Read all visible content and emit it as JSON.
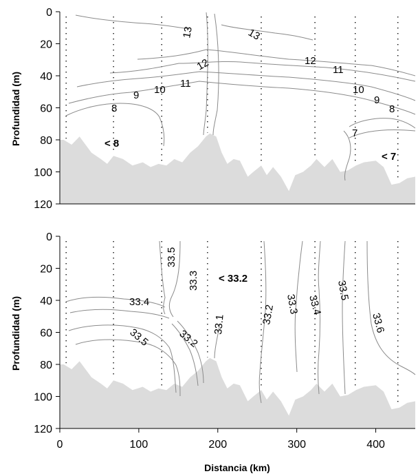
{
  "colors": {
    "bathymetry": "#dcdcdc",
    "contour": "#8a8a8a",
    "axis": "#000000"
  },
  "chart_data": [
    {
      "type": "contour",
      "ylabel": "Profundidad (m)",
      "xlim": [
        0,
        450
      ],
      "ylim": [
        0,
        120
      ],
      "y_inverted": true,
      "yticks": [
        "0",
        "20",
        "40",
        "60",
        "80",
        "100",
        "120"
      ],
      "stations_km": [
        8,
        68,
        129,
        187,
        255,
        323,
        374,
        428
      ],
      "bottom_depth": [
        [
          0,
          80
        ],
        [
          5,
          80
        ],
        [
          15,
          83
        ],
        [
          25,
          78
        ],
        [
          40,
          88
        ],
        [
          52,
          92
        ],
        [
          60,
          95
        ],
        [
          68,
          90
        ],
        [
          80,
          92
        ],
        [
          92,
          96
        ],
        [
          105,
          94
        ],
        [
          115,
          97
        ],
        [
          125,
          95
        ],
        [
          135,
          96
        ],
        [
          145,
          92
        ],
        [
          155,
          94
        ],
        [
          165,
          88
        ],
        [
          175,
          84
        ],
        [
          185,
          78
        ],
        [
          190,
          76
        ],
        [
          198,
          78
        ],
        [
          205,
          88
        ],
        [
          212,
          95
        ],
        [
          220,
          92
        ],
        [
          228,
          93
        ],
        [
          238,
          103
        ],
        [
          245,
          100
        ],
        [
          255,
          96
        ],
        [
          262,
          102
        ],
        [
          270,
          97
        ],
        [
          280,
          103
        ],
        [
          290,
          112
        ],
        [
          298,
          102
        ],
        [
          308,
          100
        ],
        [
          318,
          96
        ],
        [
          325,
          92
        ],
        [
          335,
          97
        ],
        [
          345,
          92
        ],
        [
          355,
          100
        ],
        [
          365,
          99
        ],
        [
          375,
          96
        ],
        [
          385,
          94
        ],
        [
          400,
          93
        ],
        [
          410,
          97
        ],
        [
          420,
          108
        ],
        [
          430,
          107
        ],
        [
          440,
          104
        ],
        [
          450,
          103
        ]
      ],
      "contour_labels": [
        "13",
        "13",
        "12",
        "12",
        "11",
        "11",
        "10",
        "10",
        "9",
        "9",
        "8",
        "8",
        "7",
        "< 8",
        "< 7"
      ]
    },
    {
      "type": "contour",
      "xlabel": "Distancia (km)",
      "ylabel": "Profundidad (m)",
      "xlim": [
        0,
        450
      ],
      "ylim": [
        0,
        120
      ],
      "y_inverted": true,
      "xticks": [
        "0",
        "100",
        "200",
        "300",
        "400"
      ],
      "yticks": [
        "0",
        "20",
        "40",
        "60",
        "80",
        "100",
        "120"
      ],
      "stations_km": [
        8,
        68,
        129,
        187,
        255,
        323,
        374,
        428
      ],
      "bottom_depth": [
        [
          0,
          80
        ],
        [
          5,
          80
        ],
        [
          15,
          83
        ],
        [
          25,
          78
        ],
        [
          40,
          88
        ],
        [
          52,
          92
        ],
        [
          60,
          95
        ],
        [
          68,
          90
        ],
        [
          80,
          92
        ],
        [
          92,
          96
        ],
        [
          105,
          94
        ],
        [
          115,
          97
        ],
        [
          125,
          95
        ],
        [
          135,
          96
        ],
        [
          145,
          92
        ],
        [
          155,
          94
        ],
        [
          165,
          88
        ],
        [
          175,
          84
        ],
        [
          185,
          78
        ],
        [
          190,
          76
        ],
        [
          198,
          78
        ],
        [
          205,
          88
        ],
        [
          212,
          95
        ],
        [
          220,
          92
        ],
        [
          228,
          93
        ],
        [
          238,
          103
        ],
        [
          245,
          100
        ],
        [
          255,
          96
        ],
        [
          262,
          102
        ],
        [
          270,
          97
        ],
        [
          280,
          103
        ],
        [
          290,
          112
        ],
        [
          298,
          102
        ],
        [
          308,
          100
        ],
        [
          318,
          96
        ],
        [
          325,
          92
        ],
        [
          335,
          97
        ],
        [
          345,
          92
        ],
        [
          355,
          100
        ],
        [
          365,
          99
        ],
        [
          375,
          96
        ],
        [
          385,
          94
        ],
        [
          400,
          93
        ],
        [
          410,
          97
        ],
        [
          420,
          108
        ],
        [
          430,
          107
        ],
        [
          440,
          104
        ],
        [
          450,
          103
        ]
      ],
      "contour_labels": [
        "33.5",
        "33.3",
        "< 33.2",
        "33.4",
        "33.1",
        "33.2",
        "33.3",
        "33.4",
        "33.5",
        "33.6",
        "33.5",
        "33.2"
      ]
    }
  ]
}
